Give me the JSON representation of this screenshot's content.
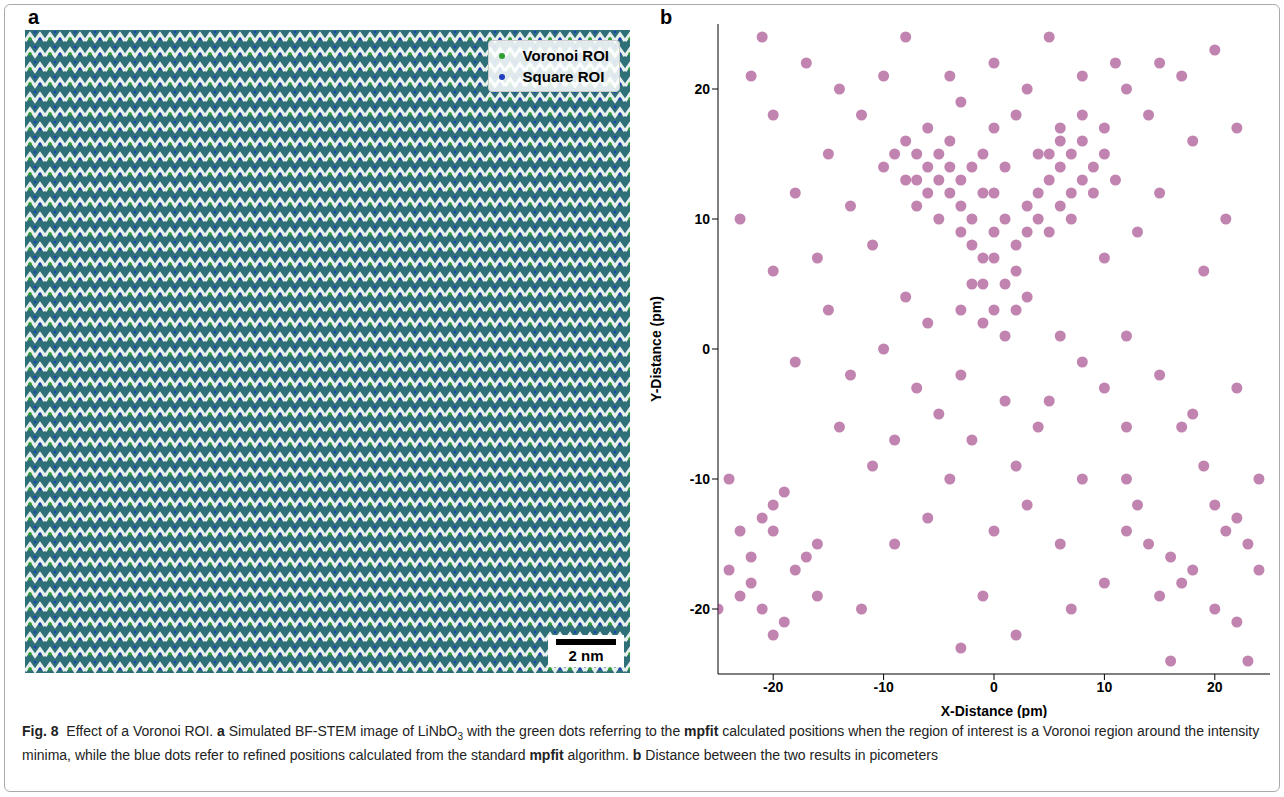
{
  "panels": {
    "a": {
      "letter": "a",
      "legend": [
        {
          "name": "Voronoi ROI",
          "color": "#2ca02c"
        },
        {
          "name": "Square ROI",
          "color": "#1f3fbf"
        }
      ],
      "scale_bar": "2 nm"
    },
    "b": {
      "letter": "b"
    }
  },
  "chart_data": {
    "type": "scatter",
    "xlabel": "X-Distance (pm)",
    "ylabel": "Y-Distance (pm)",
    "xlim": [
      -25,
      25
    ],
    "ylim": [
      -25,
      25
    ],
    "xticks": [
      -20,
      -10,
      0,
      10,
      20
    ],
    "yticks": [
      -20,
      -10,
      0,
      10,
      20
    ],
    "color": "#8e1e6e",
    "marker": "circle",
    "x": [
      -8,
      -7,
      -6,
      -5,
      -6,
      -4,
      -5,
      -7,
      -3,
      -4,
      -2,
      -3,
      -6,
      -8,
      -9,
      -5,
      -2,
      -1,
      -4,
      -7,
      -10,
      -3,
      -1,
      -2,
      5,
      6,
      7,
      8,
      4,
      6,
      7,
      5,
      8,
      9,
      4,
      3,
      6,
      10,
      7,
      3,
      2,
      5,
      9,
      4,
      8,
      10,
      11,
      6,
      0,
      1,
      0,
      -1,
      1,
      0,
      2,
      -2,
      0,
      1,
      -1,
      0,
      2,
      -3,
      3,
      1,
      -1,
      2,
      3,
      -3,
      -12,
      -14,
      -10,
      -15,
      -13,
      12,
      14,
      15,
      11,
      13,
      15,
      18,
      20,
      -20,
      -22,
      -17,
      -8,
      5,
      0,
      -4,
      8,
      17,
      -18,
      -16,
      21,
      19,
      -21,
      22,
      -11,
      10,
      -8,
      -6,
      -10,
      -13,
      -7,
      -5,
      -9,
      -3,
      6,
      8,
      10,
      5,
      12,
      15,
      -15,
      -18,
      -20,
      -23,
      18,
      22,
      -2,
      2,
      4,
      -4,
      3,
      0,
      -6,
      6,
      -9,
      8,
      -1,
      -3,
      2,
      7,
      -12,
      10,
      -11,
      12,
      -14,
      1,
      -24,
      -23,
      -22,
      -21,
      -20,
      -19,
      -20,
      -22,
      -21,
      -19,
      -20,
      -17,
      -16,
      -18,
      -24,
      -25,
      -16,
      -23,
      12,
      13,
      12,
      14,
      17,
      16,
      18,
      17,
      20,
      21,
      22,
      23,
      20,
      22,
      24,
      24,
      19,
      15,
      16,
      23
    ],
    "y": [
      16,
      15,
      14,
      13,
      12,
      12,
      15,
      13,
      11,
      14,
      10,
      9,
      17,
      13,
      15,
      10,
      8,
      7,
      16,
      11,
      14,
      13,
      12,
      14,
      13,
      14,
      15,
      13,
      12,
      11,
      12,
      15,
      16,
      14,
      10,
      9,
      17,
      15,
      10,
      11,
      8,
      9,
      12,
      15,
      18,
      17,
      13,
      16,
      9,
      10,
      7,
      5,
      5,
      3,
      6,
      5,
      12,
      14,
      15,
      17,
      18,
      19,
      20,
      1,
      2,
      3,
      4,
      3,
      18,
      20,
      21,
      15,
      11,
      20,
      18,
      22,
      22,
      9,
      12,
      16,
      23,
      18,
      21,
      22,
      24,
      24,
      22,
      21,
      21,
      21,
      12,
      7,
      10,
      6,
      24,
      17,
      8,
      7,
      4,
      2,
      0,
      -2,
      -3,
      -5,
      -7,
      -2,
      1,
      -1,
      -3,
      -4,
      1,
      -2,
      3,
      -1,
      6,
      10,
      -5,
      -3,
      -7,
      -9,
      -6,
      -10,
      -12,
      -14,
      -13,
      -15,
      -15,
      -10,
      -19,
      -23,
      -22,
      -20,
      -20,
      -18,
      -9,
      -6,
      -6,
      -4,
      -17,
      -19,
      -16,
      -13,
      -12,
      -11,
      -14,
      -18,
      -20,
      -21,
      -22,
      -16,
      -15,
      -17,
      -10,
      -20,
      -19,
      -14,
      -10,
      -12,
      -14,
      -15,
      -6,
      -16,
      -17,
      -18,
      -12,
      -14,
      -13,
      -15,
      -20,
      -21,
      -10,
      -17,
      -9,
      -19,
      -24,
      -24
    ]
  },
  "caption": [
    {
      "text": "Fig. 8",
      "bold": true
    },
    {
      "text": "  Effect of a Voronoi ROI. "
    },
    {
      "text": "a",
      "bold": true
    },
    {
      "text": " Simulated BF-STEM image of LiNbO"
    },
    {
      "text": "3",
      "sub": true
    },
    {
      "text": " with the green dots referring to the "
    },
    {
      "text": "mpfit",
      "bold": true
    },
    {
      "text": " calculated positions when the region of interest is a Voronoi region around the intensity minima, while the blue dots refer to refined positions calculated from the standard "
    },
    {
      "text": "mpfit",
      "bold": true
    },
    {
      "text": " algorithm. "
    },
    {
      "text": "b",
      "bold": true
    },
    {
      "text": " Distance between the two results in picometers"
    }
  ]
}
